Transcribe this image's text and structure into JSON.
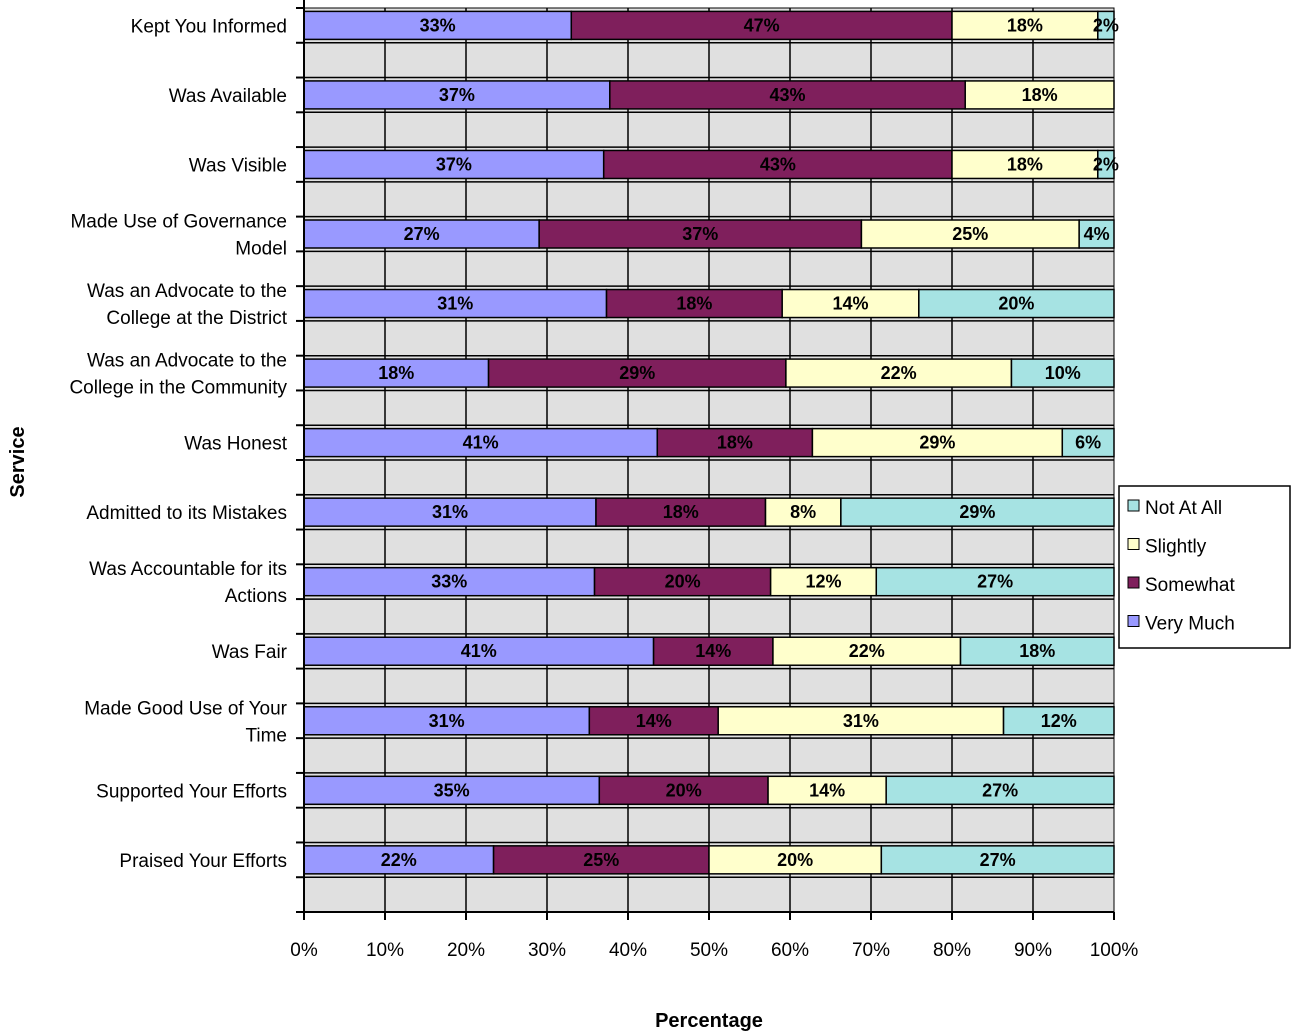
{
  "chart_data": {
    "type": "bar",
    "orientation": "horizontal",
    "stacked": "percent",
    "xlabel": "Percentage",
    "ylabel": "Service",
    "xlim": [
      0,
      100
    ],
    "xticks": [
      "0%",
      "10%",
      "20%",
      "30%",
      "40%",
      "50%",
      "60%",
      "70%",
      "80%",
      "90%",
      "100%"
    ],
    "grid": true,
    "legend_position": "right",
    "categories": [
      [
        "Kept You Informed"
      ],
      [
        "Was Available"
      ],
      [
        "Was Visible"
      ],
      [
        "Made Use of Governance",
        "Model"
      ],
      [
        "Was an Advocate to the",
        "College at the District"
      ],
      [
        "Was an Advocate to the",
        "College in the Community"
      ],
      [
        "Was Honest"
      ],
      [
        "Admitted to its Mistakes"
      ],
      [
        "Was Accountable for its",
        "Actions"
      ],
      [
        "Was Fair"
      ],
      [
        "Made Good Use of Your",
        "Time"
      ],
      [
        "Supported Your Efforts"
      ],
      [
        "Praised Your Efforts"
      ]
    ],
    "series": [
      {
        "name": "Very Much",
        "color": "#9999ff",
        "values": [
          33,
          37,
          37,
          27,
          31,
          18,
          41,
          31,
          33,
          41,
          31,
          35,
          22
        ],
        "labels": [
          "33%",
          "37%",
          "37%",
          "27%",
          "31%",
          "18%",
          "41%",
          "31%",
          "33%",
          "41%",
          "31%",
          "35%",
          "22%"
        ]
      },
      {
        "name": "Somewhat",
        "color": "#7f1f5c",
        "values": [
          47,
          43,
          43,
          37,
          18,
          29,
          18,
          18,
          20,
          14,
          14,
          20,
          25
        ],
        "labels": [
          "47%",
          "43%",
          "43%",
          "37%",
          "18%",
          "29%",
          "18%",
          "18%",
          "20%",
          "14%",
          "14%",
          "20%",
          "25%"
        ]
      },
      {
        "name": "Slightly",
        "color": "#ffffcc",
        "values": [
          18,
          18,
          18,
          25,
          14,
          22,
          29,
          8,
          12,
          22,
          31,
          14,
          20
        ],
        "labels": [
          "18%",
          "18%",
          "18%",
          "25%",
          "14%",
          "22%",
          "29%",
          "8%",
          "12%",
          "22%",
          "31%",
          "14%",
          "20%"
        ]
      },
      {
        "name": "Not At All",
        "color": "#a6e3e3",
        "values": [
          2,
          0,
          2,
          4,
          20,
          10,
          6,
          29,
          27,
          18,
          12,
          27,
          27
        ],
        "labels": [
          "2%",
          "",
          "2%",
          "4%",
          "20%",
          "10%",
          "6%",
          "29%",
          "27%",
          "18%",
          "12%",
          "27%",
          "27%"
        ]
      }
    ],
    "legend_order": [
      "Not At All",
      "Slightly",
      "Somewhat",
      "Very Much"
    ],
    "plot_background": "#e0e0e0"
  }
}
